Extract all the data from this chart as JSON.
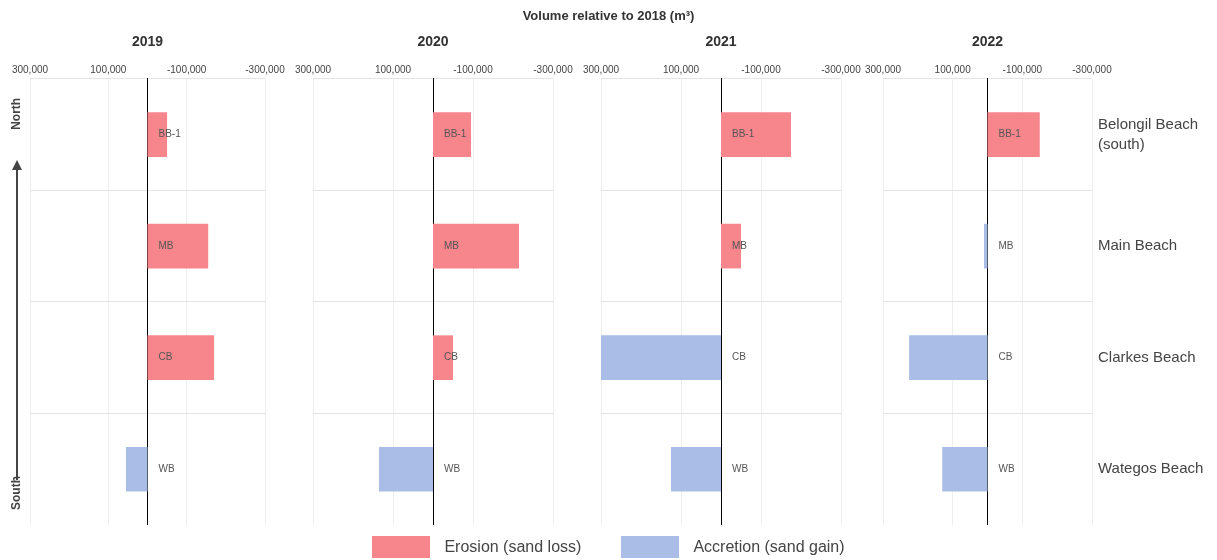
{
  "chart_data": [
    {
      "type": "other",
      "title": "Volume  relative to 2018 (m³)"
    },
    {
      "type": "bar",
      "orientation": "horizontal",
      "title": "2019",
      "categories": [
        "BB-1",
        "MB",
        "CB",
        "WB"
      ],
      "series": [
        {
          "name": "Erosion (sand loss)",
          "color": "#f7868c",
          "values": [
            -50000,
            -155000,
            -170000,
            null
          ]
        },
        {
          "name": "Accretion (sand gain)",
          "color": "#a9bde6",
          "values": [
            null,
            null,
            null,
            55000
          ]
        }
      ],
      "xlim": [
        300000,
        -300000
      ],
      "xticks": [
        {
          "value": 300000,
          "label": "300,000"
        },
        {
          "value": 100000,
          "label": "100,000"
        },
        {
          "value": -100000,
          "label": "-100,000"
        },
        {
          "value": -300000,
          "label": "-300,000"
        }
      ],
      "grid": true,
      "legend": "bottom",
      "annotations": [
        "North",
        "South"
      ]
    },
    {
      "type": "bar",
      "orientation": "horizontal",
      "title": "2020",
      "categories": [
        "BB-1",
        "MB",
        "CB",
        "WB"
      ],
      "series": [
        {
          "color": "#f7868c",
          "values": [
            -95000,
            -215000,
            -50000,
            null
          ]
        },
        {
          "color": "#a9bde6",
          "values": [
            null,
            null,
            null,
            135000
          ]
        }
      ],
      "xlim": [
        300000,
        -300000
      ],
      "xticks": [
        {
          "value": 300000,
          "label": "300,000"
        },
        {
          "value": 100000,
          "label": "100,000"
        },
        {
          "value": -100000,
          "label": "-100,000"
        },
        {
          "value": -300000,
          "label": "-300,000"
        }
      ],
      "grid": true
    },
    {
      "type": "bar",
      "orientation": "horizontal",
      "title": "2021",
      "categories": [
        "BB-1",
        "MB",
        "CB",
        "WB"
      ],
      "series": [
        {
          "color": "#f7868c",
          "values": [
            -175000,
            -50000,
            null,
            null
          ]
        },
        {
          "color": "#a9bde6",
          "values": [
            null,
            null,
            300000,
            125000
          ]
        }
      ],
      "xlim": [
        300000,
        -300000
      ],
      "xticks": [
        {
          "value": 300000,
          "label": "300,000"
        },
        {
          "value": 100000,
          "label": "100,000"
        },
        {
          "value": -100000,
          "label": "-100,000"
        },
        {
          "value": -300000,
          "label": "-300,000"
        }
      ],
      "grid": true
    },
    {
      "type": "bar",
      "orientation": "horizontal",
      "title": "2022",
      "categories": [
        "BB-1",
        "MB",
        "CB",
        "WB"
      ],
      "series": [
        {
          "color": "#f7868c",
          "values": [
            -150000,
            null,
            null,
            null
          ]
        },
        {
          "color": "#a9bde6",
          "values": [
            null,
            10000,
            225000,
            130000
          ]
        }
      ],
      "xlim": [
        300000,
        -300000
      ],
      "xticks": [
        {
          "value": 300000,
          "label": "300,000"
        },
        {
          "value": 100000,
          "label": "100,000"
        },
        {
          "value": -100000,
          "label": "-100,000"
        },
        {
          "value": -300000,
          "label": "-300,000"
        }
      ],
      "grid": true,
      "annotations": [
        "Belongil Beach (south)",
        "Main Beach",
        "Clarkes Beach",
        "Wategos Beach"
      ]
    }
  ]
}
